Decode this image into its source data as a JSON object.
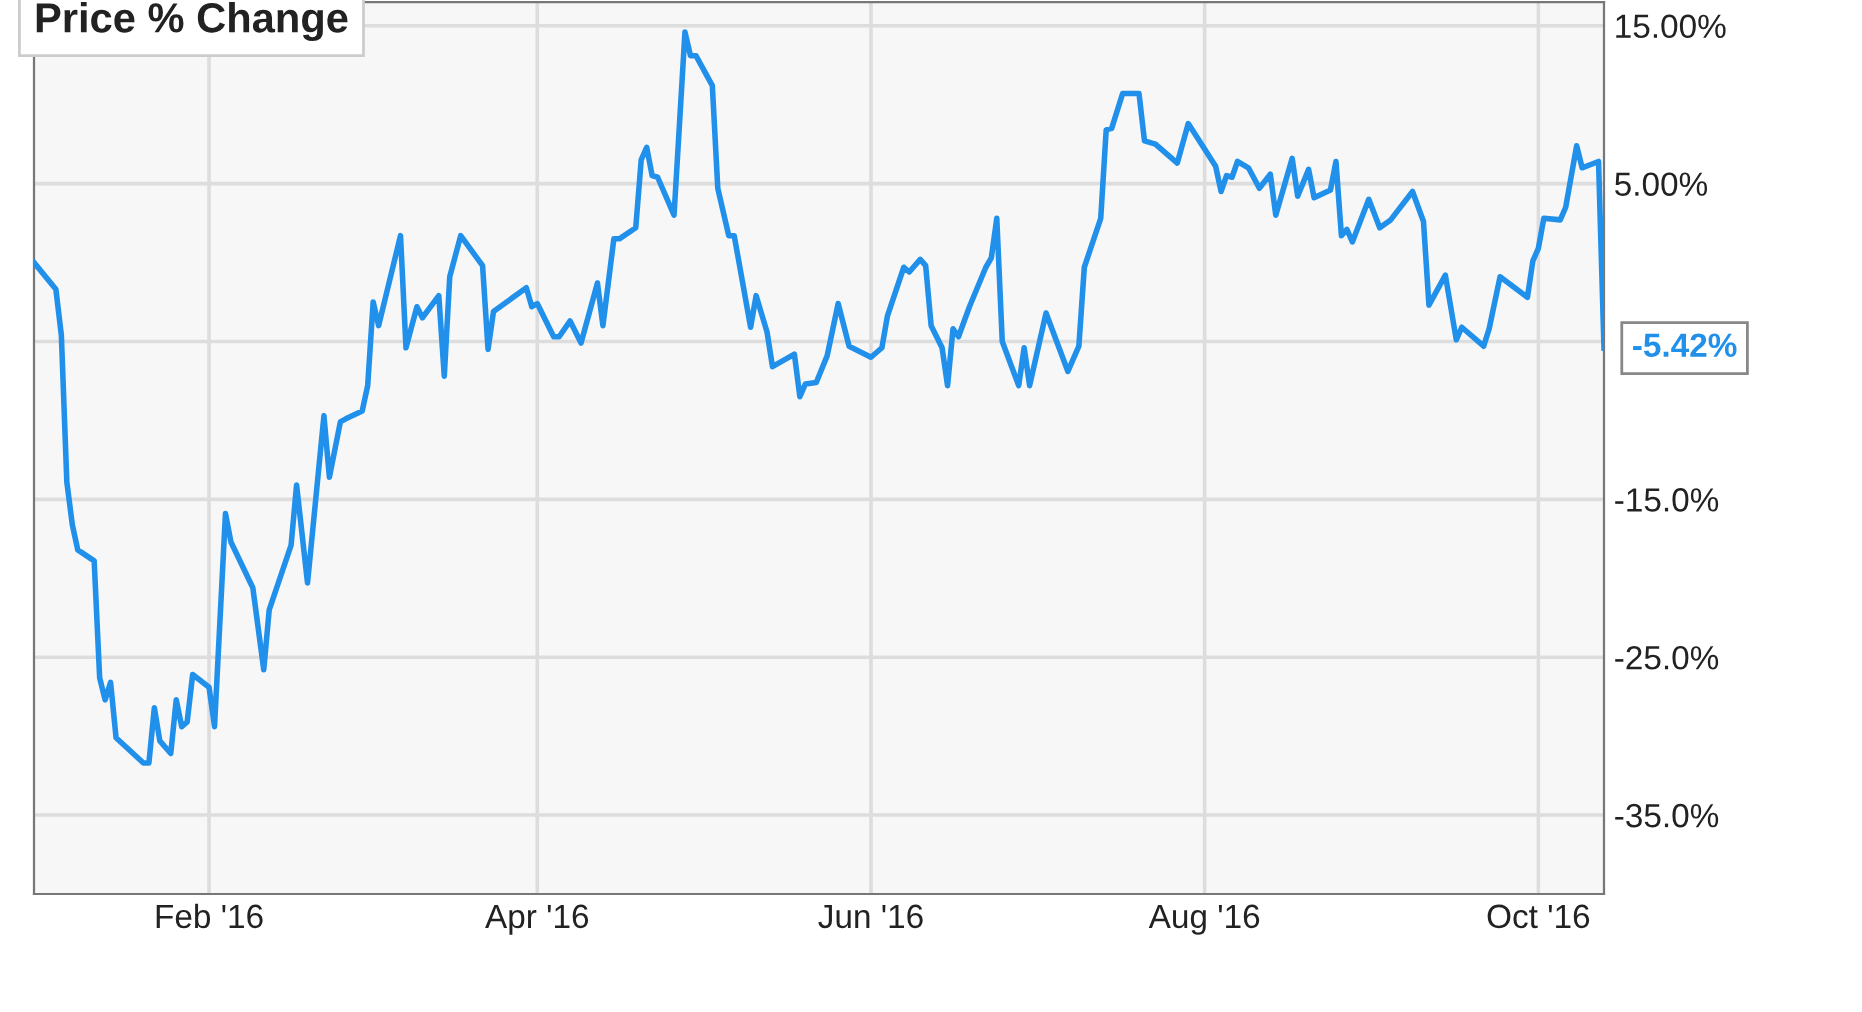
{
  "chart_data": {
    "type": "line",
    "title": "Price % Change",
    "x": [
      "2015-12-31",
      "2016-01-04",
      "2016-01-05",
      "2016-01-06",
      "2016-01-07",
      "2016-01-08",
      "2016-01-11",
      "2016-01-12",
      "2016-01-13",
      "2016-01-14",
      "2016-01-15",
      "2016-01-20",
      "2016-01-21",
      "2016-01-22",
      "2016-01-23",
      "2016-01-25",
      "2016-01-26",
      "2016-01-27",
      "2016-01-28",
      "2016-01-29",
      "2016-02-01",
      "2016-02-02",
      "2016-02-04",
      "2016-02-05",
      "2016-02-09",
      "2016-02-11",
      "2016-02-12",
      "2016-02-16",
      "2016-02-17",
      "2016-02-19",
      "2016-02-22",
      "2016-02-23",
      "2016-02-25",
      "2016-02-26",
      "2016-02-29",
      "2016-03-01",
      "2016-03-02",
      "2016-03-03",
      "2016-03-07",
      "2016-03-08",
      "2016-03-10",
      "2016-03-11",
      "2016-03-14",
      "2016-03-15",
      "2016-03-16",
      "2016-03-18",
      "2016-03-22",
      "2016-03-23",
      "2016-03-24",
      "2016-03-30",
      "2016-03-31",
      "2016-04-01",
      "2016-04-04",
      "2016-04-05",
      "2016-04-07",
      "2016-04-09",
      "2016-04-12",
      "2016-04-13",
      "2016-04-15",
      "2016-04-16",
      "2016-04-19",
      "2016-04-20",
      "2016-04-21",
      "2016-04-22",
      "2016-04-23",
      "2016-04-26",
      "2016-04-28",
      "2016-04-29",
      "2016-04-30",
      "2016-05-03",
      "2016-05-04",
      "2016-05-06",
      "2016-05-07",
      "2016-05-10",
      "2016-05-11",
      "2016-05-13",
      "2016-05-14",
      "2016-05-18",
      "2016-05-19",
      "2016-05-20",
      "2016-05-22",
      "2016-05-24",
      "2016-05-26",
      "2016-05-28",
      "2016-06-01",
      "2016-06-03",
      "2016-06-04",
      "2016-06-07",
      "2016-06-08",
      "2016-06-10",
      "2016-06-11",
      "2016-06-12",
      "2016-06-14",
      "2016-06-15",
      "2016-06-16",
      "2016-06-17",
      "2016-06-19",
      "2016-06-22",
      "2016-06-23",
      "2016-06-24",
      "2016-06-25",
      "2016-06-28",
      "2016-06-29",
      "2016-06-30",
      "2016-07-03",
      "2016-07-07",
      "2016-07-09",
      "2016-07-10",
      "2016-07-13",
      "2016-07-14",
      "2016-07-15",
      "2016-07-17",
      "2016-07-20",
      "2016-07-21",
      "2016-07-23",
      "2016-07-27",
      "2016-07-29",
      "2016-08-03",
      "2016-08-04",
      "2016-08-05",
      "2016-08-06",
      "2016-08-07",
      "2016-08-09",
      "2016-08-11",
      "2016-08-13",
      "2016-08-14",
      "2016-08-17",
      "2016-08-18",
      "2016-08-20",
      "2016-08-21",
      "2016-08-24",
      "2016-08-25",
      "2016-08-26",
      "2016-08-27",
      "2016-08-28",
      "2016-08-31",
      "2016-09-02",
      "2016-09-04",
      "2016-09-08",
      "2016-09-10",
      "2016-09-11",
      "2016-09-14",
      "2016-09-16",
      "2016-09-17",
      "2016-09-21",
      "2016-09-22",
      "2016-09-24",
      "2016-09-29",
      "2016-09-30",
      "2016-10-01",
      "2016-10-02",
      "2016-10-05",
      "2016-10-06",
      "2016-10-08",
      "2016-10-09",
      "2016-10-12",
      "2016-10-13"
    ],
    "series": [
      {
        "color": "#2190ea",
        "values": [
          0,
          -1.7,
          -4.6,
          -13.9,
          -16.6,
          -18.2,
          -18.9,
          -26.3,
          -27.7,
          -26.6,
          -30.1,
          -31.7,
          -31.7,
          -28.2,
          -30.3,
          -31.1,
          -27.7,
          -29.4,
          -29.1,
          -26.1,
          -26.9,
          -29.4,
          -15.9,
          -17.7,
          -20.6,
          -25.8,
          -22.0,
          -17.9,
          -14.1,
          -20.3,
          -9.7,
          -13.6,
          -10.1,
          -9.9,
          -9.4,
          -7.8,
          -2.5,
          -4.0,
          1.7,
          -5.4,
          -2.8,
          -3.5,
          -2.1,
          -7.2,
          -0.9,
          1.7,
          -0.2,
          -5.5,
          -3.1,
          -1.6,
          -2.8,
          -2.6,
          -4.7,
          -4.7,
          -3.7,
          -5.1,
          -1.3,
          -4.0,
          1.5,
          1.5,
          2.2,
          6.5,
          7.3,
          5.5,
          5.4,
          3.0,
          14.6,
          13.1,
          13.1,
          11.2,
          4.7,
          1.7,
          1.7,
          -4.1,
          -2.1,
          -4.4,
          -6.6,
          -5.8,
          -8.5,
          -7.7,
          -7.6,
          -5.9,
          -2.6,
          -5.3,
          -6.0,
          -5.4,
          -3.4,
          -0.3,
          -0.6,
          0.2,
          -0.2,
          -4.0,
          -5.4,
          -7.8,
          -4.2,
          -4.7,
          -2.8,
          -0.3,
          0.3,
          2.8,
          -5.0,
          -7.8,
          -5.4,
          -7.8,
          -3.2,
          -6.9,
          -5.3,
          -0.3,
          2.8,
          8.4,
          8.5,
          10.7,
          10.7,
          7.7,
          7.5,
          6.3,
          8.8,
          6.1,
          4.5,
          5.5,
          5.4,
          6.4,
          6.0,
          4.7,
          5.6,
          3.0,
          6.6,
          4.2,
          5.9,
          4.1,
          4.6,
          6.4,
          1.7,
          2.1,
          1.3,
          4.0,
          2.2,
          2.7,
          4.5,
          2.6,
          -2.7,
          -0.8,
          -4.9,
          -4.1,
          -5.3,
          -4.2,
          -0.9,
          -2.2,
          0.1,
          0.9,
          2.8,
          2.7,
          3.5,
          7.4,
          6.0,
          6.4,
          -5.42
        ]
      }
    ],
    "xlim": [
      "2015-12-31",
      "2016-10-13"
    ],
    "xticks": [
      {
        "value": "2016-02-01",
        "label": "Feb '16"
      },
      {
        "value": "2016-04-01",
        "label": "Apr '16"
      },
      {
        "value": "2016-06-01",
        "label": "Jun '16"
      },
      {
        "value": "2016-08-01",
        "label": "Aug '16"
      },
      {
        "value": "2016-10-01",
        "label": "Oct '16"
      }
    ],
    "ylim": [
      -40,
      16.5
    ],
    "yticks": [
      {
        "value": 15,
        "label": "15.00%"
      },
      {
        "value": 5,
        "label": "5.00%"
      },
      {
        "value": -5,
        "label": null
      },
      {
        "value": -15,
        "label": "-15.0%"
      },
      {
        "value": -25,
        "label": "-25.0%"
      },
      {
        "value": -35,
        "label": "-35.0%"
      }
    ],
    "annotations": [
      {
        "text": "-5.42%",
        "x": "2016-10-13",
        "y": -5.42
      }
    ],
    "grid": true,
    "legend": false,
    "marker": "none",
    "line_style": "solid"
  }
}
